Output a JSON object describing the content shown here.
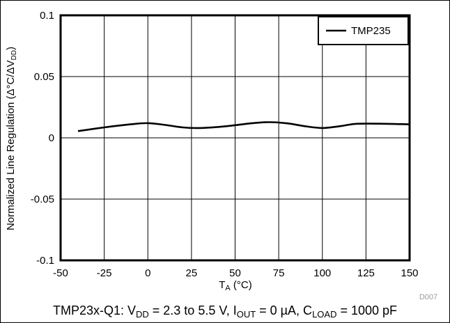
{
  "chart_data": {
    "type": "line",
    "title": "",
    "xlabel_main": "T",
    "xlabel_sub": "A",
    "xlabel_unit": " (°C)",
    "ylabel_parts": [
      "Normalized Line Regulation (Δ°C/ΔV",
      "DD",
      ")"
    ],
    "xlim": [
      -50,
      150
    ],
    "ylim": [
      -0.1,
      0.1
    ],
    "xticks": [
      -50,
      -25,
      0,
      25,
      50,
      75,
      100,
      125,
      150
    ],
    "xtick_labels": [
      "-50",
      "-25",
      "0",
      "25",
      "50",
      "75",
      "100",
      "125",
      "150"
    ],
    "yticks": [
      0.1,
      0.05,
      0,
      -0.05,
      -0.1
    ],
    "ytick_labels": [
      "0.1",
      "0.05",
      "0",
      "-0.05",
      "-0.1"
    ],
    "grid": true,
    "legend_position": "top-right",
    "series": [
      {
        "name": "TMP235",
        "color": "#000000",
        "x": [
          -40,
          -25,
          -10,
          0,
          10,
          20,
          30,
          45,
          60,
          70,
          80,
          90,
          100,
          110,
          120,
          135,
          150
        ],
        "y": [
          0.0055,
          0.0085,
          0.011,
          0.012,
          0.0105,
          0.0085,
          0.008,
          0.0095,
          0.012,
          0.0128,
          0.0118,
          0.0095,
          0.008,
          0.0095,
          0.0115,
          0.0115,
          0.011
        ]
      }
    ],
    "figure_id": "D007"
  },
  "caption": {
    "parts": [
      {
        "t": "TMP23x-Q1: V"
      },
      {
        "t": "DD",
        "sub": true
      },
      {
        "t": " = 2.3 to 5.5 V, I"
      },
      {
        "t": "OUT",
        "sub": true
      },
      {
        "t": " = 0 µA, C"
      },
      {
        "t": "LOAD",
        "sub": true
      },
      {
        "t": " = 1000 pF"
      }
    ]
  }
}
